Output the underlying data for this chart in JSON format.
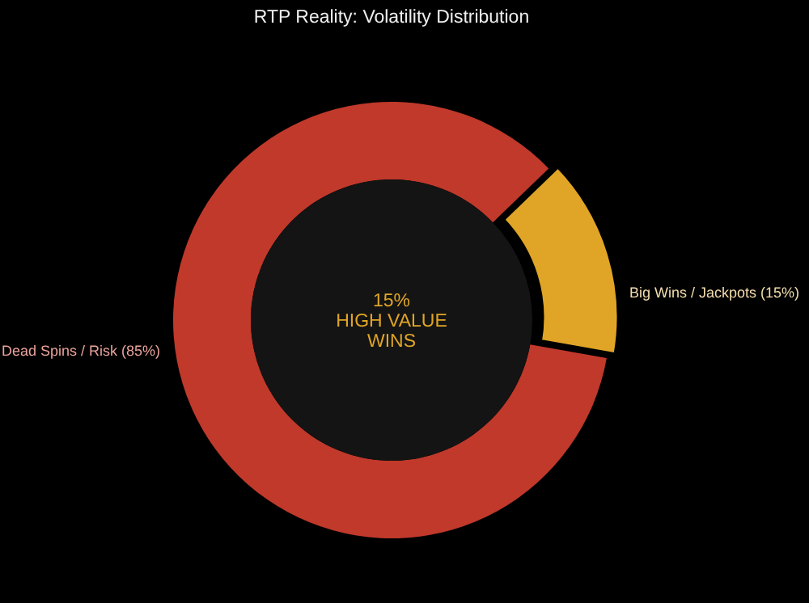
{
  "chart_data": {
    "type": "donut",
    "title": "RTP Reality: Volatility Distribution",
    "categories": [
      "Dead Spins / Risk (85%)",
      "Big Wins / Jackpots (15%)"
    ],
    "values": [
      85,
      15
    ],
    "colors": [
      "#c0392b",
      "#e0a526"
    ],
    "annotations": [
      "15%\nHIGH VALUE\nWINS"
    ]
  }
}
